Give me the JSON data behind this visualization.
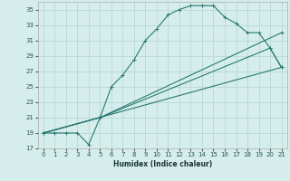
{
  "xlabel": "Humidex (Indice chaleur)",
  "bg_color": "#d5eeec",
  "grid_color": "#b8d8d5",
  "line_color": "#2a7a72",
  "xlim": [
    -0.5,
    21.5
  ],
  "ylim": [
    17,
    36
  ],
  "yticks": [
    17,
    19,
    21,
    23,
    25,
    27,
    29,
    31,
    33,
    35
  ],
  "xticks": [
    0,
    1,
    2,
    3,
    4,
    5,
    6,
    7,
    8,
    9,
    10,
    11,
    12,
    13,
    14,
    15,
    16,
    17,
    18,
    19,
    20,
    21
  ],
  "line1_x": [
    0,
    1,
    2,
    3,
    4,
    5,
    6,
    7,
    8,
    9,
    10,
    11,
    12,
    13,
    14,
    15,
    16,
    17,
    18,
    19,
    20,
    21
  ],
  "line1_y": [
    19,
    19,
    19,
    19,
    17.5,
    21,
    25,
    26.5,
    28.5,
    31,
    32.5,
    34.3,
    35,
    35.5,
    35.5,
    35.5,
    34,
    33.2,
    32,
    32,
    30,
    27.5
  ],
  "line2_x": [
    0,
    5,
    21
  ],
  "line2_y": [
    19,
    21,
    32
  ],
  "line3_x": [
    0,
    5,
    20,
    21
  ],
  "line3_y": [
    19,
    21,
    30,
    27.5
  ],
  "line4_x": [
    0,
    21
  ],
  "line4_y": [
    19,
    27.5
  ]
}
